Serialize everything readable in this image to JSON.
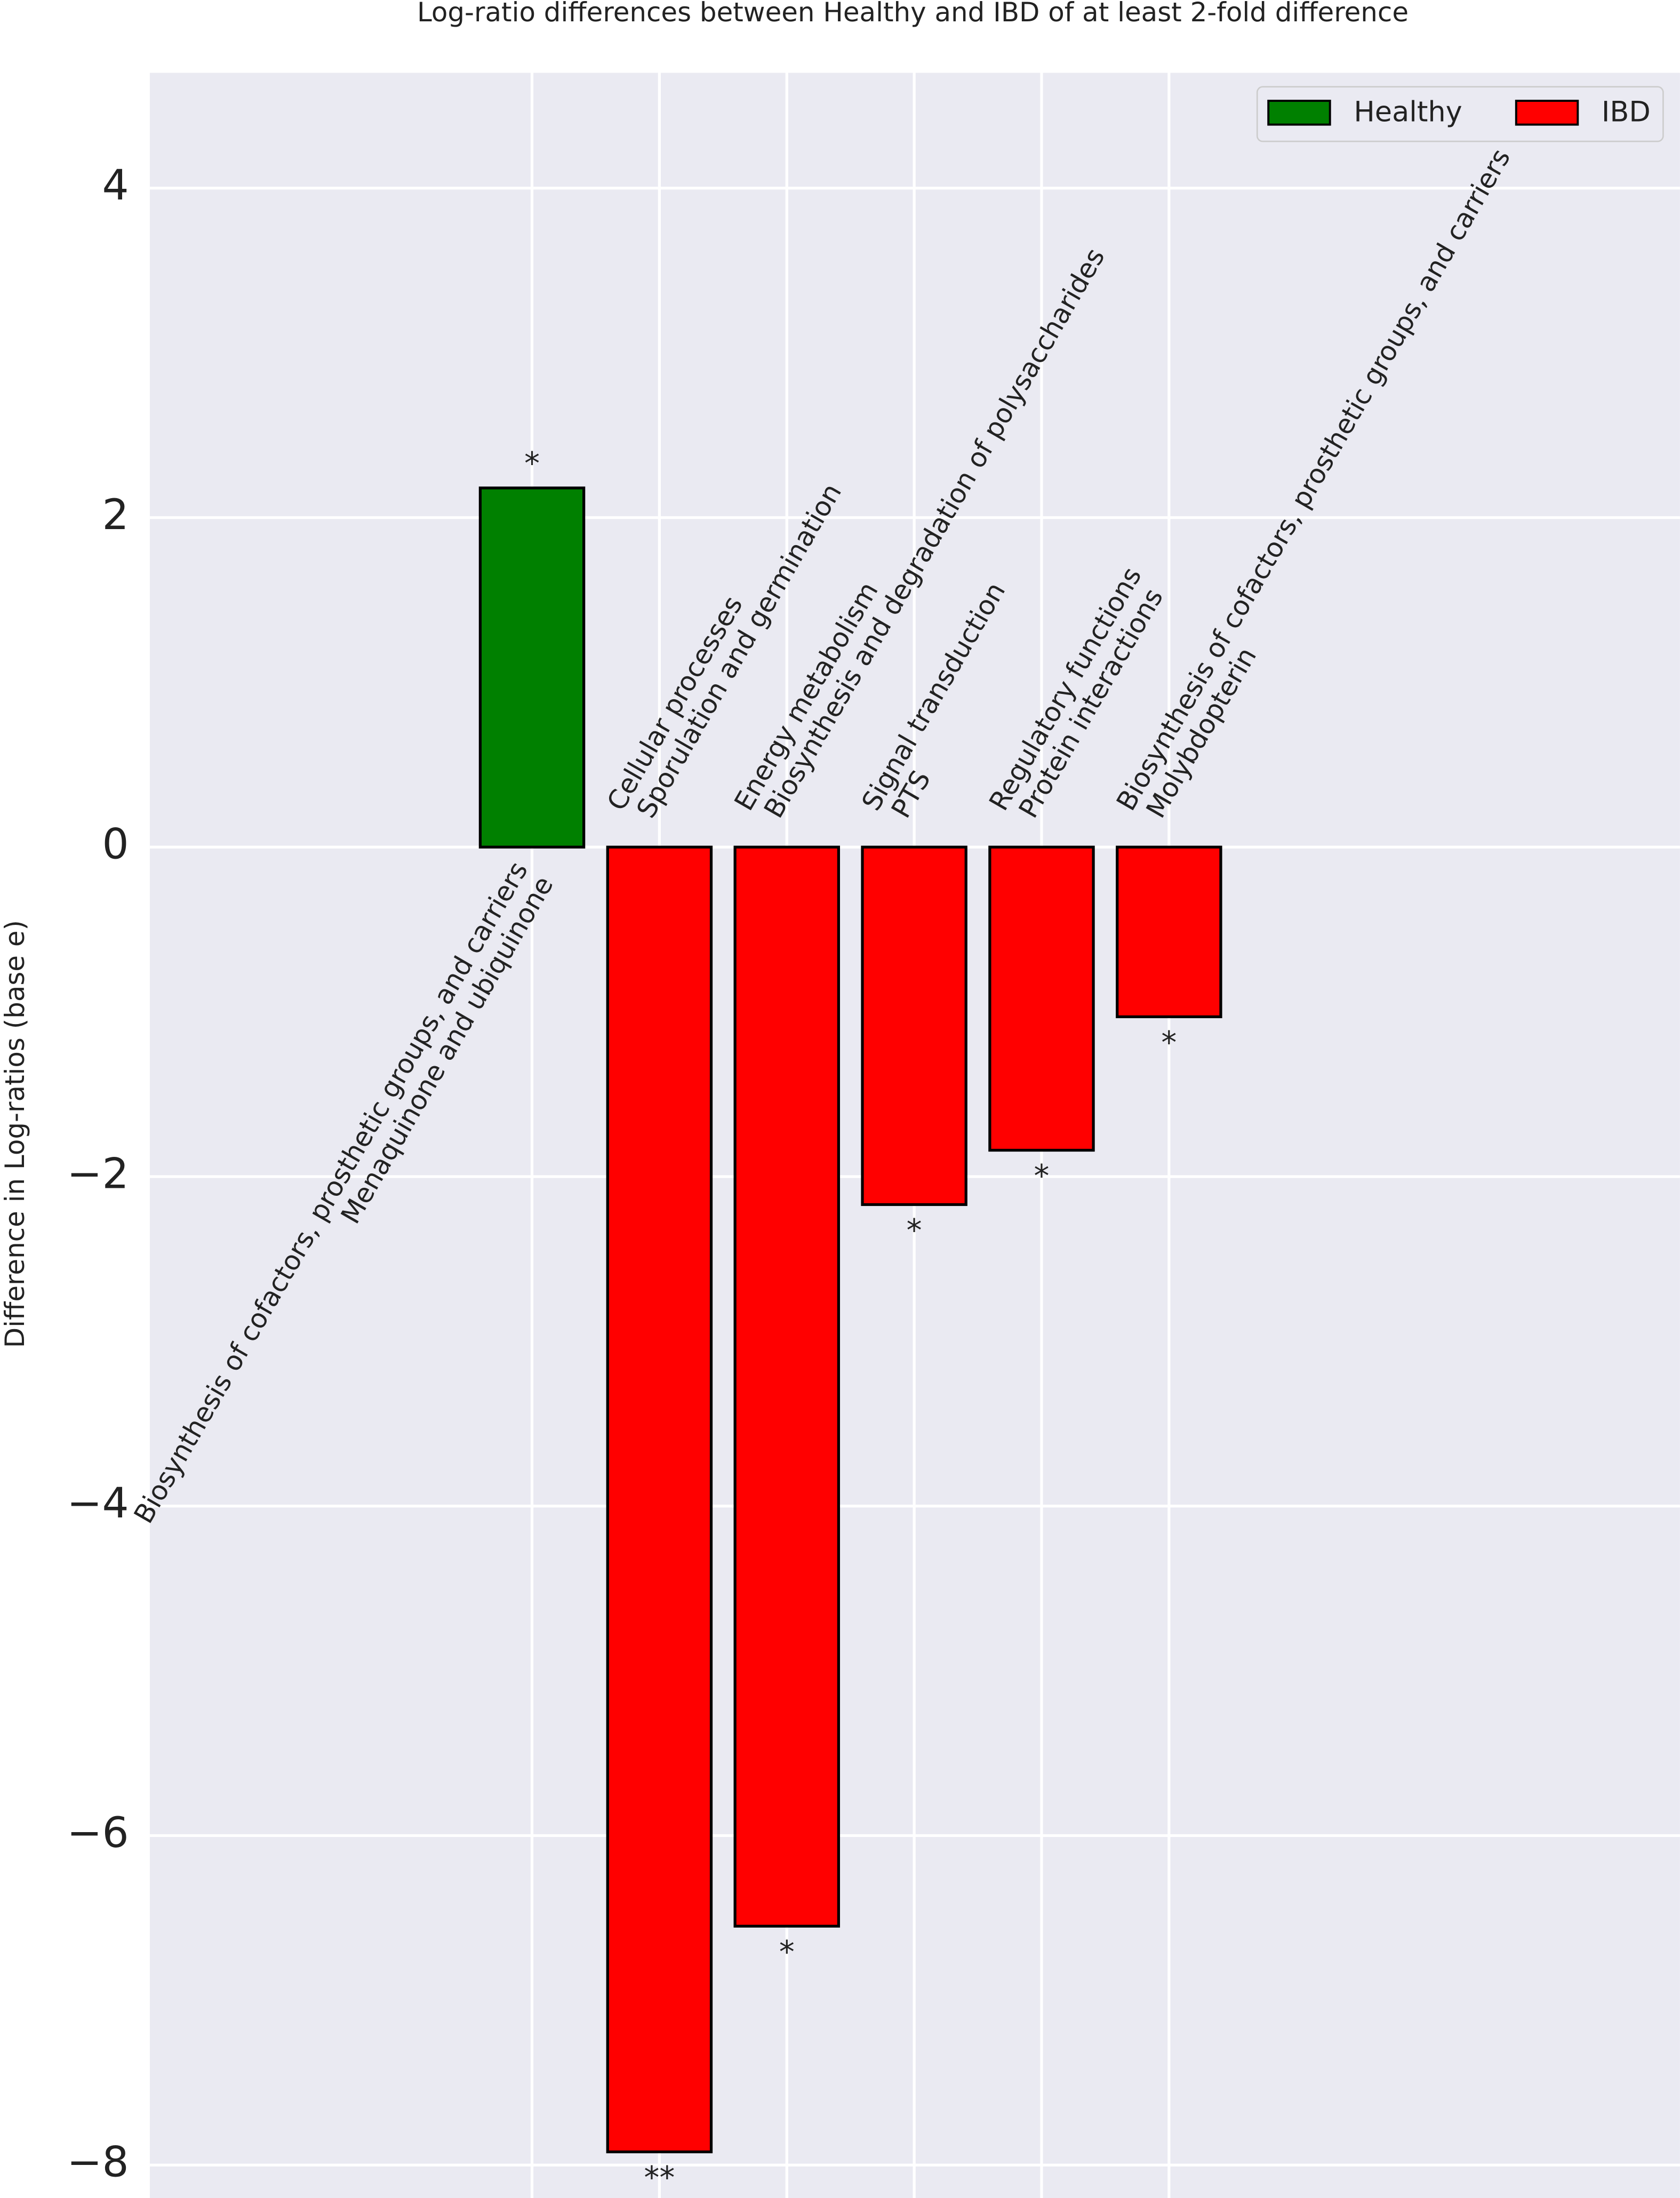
{
  "chart_data": {
    "type": "bar",
    "title": "Log-ratio differences between Healthy and IBD of at least 2-fold difference",
    "y_label": "Difference in Log-ratios (base e)",
    "categories": [
      [
        "Biosynthesis of cofactors, prosthetic groups, and carriers",
        "Menaquinone and ubiquinone"
      ],
      [
        "Cellular processes",
        "Sporulation and germination"
      ],
      [
        "Energy metabolism",
        "Biosynthesis and degradation of polysaccharides"
      ],
      [
        "Signal transduction",
        "PTS"
      ],
      [
        "Regulatory functions",
        "Protein interactions"
      ],
      [
        "Biosynthesis of cofactors, prosthetic groups, and carriers",
        "Molybdopterin"
      ]
    ],
    "series": [
      {
        "name": "Healthy",
        "color": "#008000",
        "values": [
          2.18,
          null,
          null,
          null,
          null,
          null
        ]
      },
      {
        "name": "IBD",
        "color": "#ff0000",
        "values": [
          null,
          -7.92,
          -6.55,
          -2.17,
          -1.84,
          -1.03
        ]
      }
    ],
    "significance": [
      "*",
      "**",
      "*",
      "*",
      "*",
      "*"
    ],
    "ylim": [
      -8.2,
      4.7
    ],
    "yticks": [
      {
        "value": -8,
        "label": "−8"
      },
      {
        "value": -6,
        "label": "−6"
      },
      {
        "value": -4,
        "label": "−4"
      },
      {
        "value": -2,
        "label": "−2"
      },
      0,
      2,
      4
    ],
    "grid": true,
    "legend": "upper right"
  }
}
